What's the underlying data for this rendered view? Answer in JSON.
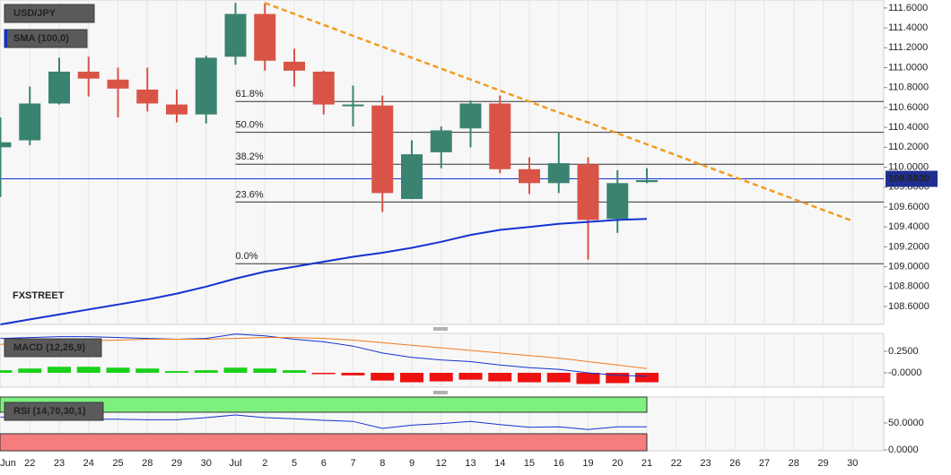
{
  "chart_data": [
    {
      "type": "candlestick",
      "title": "USD/JPY",
      "watermark": "FXSTREET",
      "categories": [
        "Jun",
        "22",
        "23",
        "24",
        "25",
        "28",
        "29",
        "30",
        "Jul",
        "2",
        "5",
        "6",
        "7",
        "8",
        "9",
        "12",
        "13",
        "14",
        "15",
        "16",
        "19",
        "20",
        "21",
        "22",
        "23",
        "26",
        "27",
        "28",
        "29",
        "30"
      ],
      "open": [
        110.2,
        110.27,
        110.64,
        110.96,
        110.88,
        110.78,
        110.63,
        110.53,
        111.11,
        111.54,
        111.06,
        110.96,
        110.62,
        110.62,
        109.68,
        110.15,
        110.39,
        110.64,
        109.98,
        109.84,
        110.03,
        109.48,
        109.85,
        null,
        null,
        null,
        null,
        null,
        null,
        null
      ],
      "high": [
        110.5,
        110.81,
        111.1,
        111.11,
        111.0,
        111.0,
        110.78,
        111.12,
        111.65,
        111.65,
        111.19,
        110.97,
        110.82,
        110.72,
        110.27,
        110.41,
        110.67,
        110.72,
        110.1,
        110.35,
        110.1,
        109.97,
        109.99,
        null,
        null,
        null,
        null,
        null,
        null,
        null
      ],
      "low": [
        109.7,
        110.22,
        110.63,
        110.71,
        110.5,
        110.56,
        110.45,
        110.44,
        111.03,
        110.97,
        110.81,
        110.53,
        110.41,
        109.55,
        109.68,
        109.99,
        110.2,
        109.94,
        109.73,
        109.74,
        109.07,
        109.34,
        109.84,
        null,
        null,
        null,
        null,
        null,
        null,
        null
      ],
      "close": [
        110.25,
        110.64,
        110.96,
        110.89,
        110.79,
        110.64,
        110.53,
        111.1,
        111.54,
        111.07,
        110.97,
        110.63,
        110.63,
        109.74,
        110.13,
        110.37,
        110.64,
        109.98,
        109.84,
        110.04,
        109.47,
        109.84,
        109.87,
        null,
        null,
        null,
        null,
        null,
        null,
        null
      ],
      "up_color": "#3b8371",
      "down_color": "#d95447",
      "ylim": [
        108.42,
        111.68
      ],
      "yticks": [
        {
          "value": 108.6,
          "label": "108.6000"
        },
        {
          "value": 108.8,
          "label": "108.8000"
        },
        {
          "value": 109.0,
          "label": "109.0000"
        },
        {
          "value": 109.2,
          "label": "109.2000"
        },
        {
          "value": 109.4,
          "label": "109.4000"
        },
        {
          "value": 109.6,
          "label": "109.6000"
        },
        {
          "value": 109.8,
          "label": "109.8000"
        },
        {
          "value": 110.0,
          "label": "110.0000"
        },
        {
          "value": 110.2,
          "label": "110.2000"
        },
        {
          "value": 110.4,
          "label": "110.4000"
        },
        {
          "value": 110.6,
          "label": "110.6000"
        },
        {
          "value": 110.8,
          "label": "110.8000"
        },
        {
          "value": 111.0,
          "label": "111.0000"
        },
        {
          "value": 111.2,
          "label": "111.2000"
        },
        {
          "value": 111.4,
          "label": "111.4000"
        },
        {
          "value": 111.6,
          "label": "111.6000"
        }
      ],
      "last_price": {
        "value": 109.883,
        "label": "109.8830"
      },
      "sma": {
        "name": "SMA (100,0)",
        "color": "#1432d0",
        "values": [
          108.42,
          108.47,
          108.52,
          108.57,
          108.62,
          108.67,
          108.73,
          108.8,
          108.88,
          108.95,
          109.0,
          109.05,
          109.1,
          109.14,
          109.19,
          109.25,
          109.32,
          109.37,
          109.4,
          109.43,
          109.45,
          109.47,
          109.48,
          null,
          null,
          null,
          null,
          null,
          null,
          null
        ]
      },
      "trendline": {
        "color": "#f39a1e",
        "values": [
          null,
          null,
          null,
          null,
          null,
          null,
          null,
          null,
          null,
          111.65,
          111.54,
          111.43,
          111.32,
          111.21,
          111.1,
          110.99,
          110.88,
          110.77,
          110.66,
          110.55,
          110.45,
          110.34,
          110.23,
          110.12,
          110.01,
          109.9,
          109.79,
          109.68,
          109.57,
          109.46
        ]
      },
      "fib_levels": [
        {
          "label": "61.8%",
          "value": 110.66
        },
        {
          "label": "50.0%",
          "value": 110.35
        },
        {
          "label": "38.2%",
          "value": 110.03
        },
        {
          "label": "23.6%",
          "value": 109.65
        },
        {
          "label": "0.0%",
          "value": 109.03
        }
      ]
    },
    {
      "type": "macd",
      "title": "MACD (12,26,9)",
      "histogram": [
        0.03,
        0.05,
        0.07,
        0.07,
        0.06,
        0.05,
        0.02,
        0.03,
        0.06,
        0.05,
        0.03,
        -0.005,
        -0.03,
        -0.09,
        -0.11,
        -0.1,
        -0.08,
        -0.1,
        -0.11,
        -0.11,
        -0.13,
        -0.12,
        -0.11,
        null,
        null,
        null,
        null,
        null,
        null,
        null
      ],
      "pos_color": "#19d119",
      "neg_color": "#ee1111",
      "macd": {
        "color": "#1432d0",
        "values": [
          0.4,
          0.41,
          0.42,
          0.42,
          0.41,
          0.4,
          0.39,
          0.4,
          0.45,
          0.43,
          0.39,
          0.36,
          0.31,
          0.23,
          0.18,
          0.15,
          0.13,
          0.09,
          0.06,
          0.04,
          0.0,
          -0.03,
          -0.04,
          null,
          null,
          null,
          null,
          null,
          null,
          null
        ]
      },
      "signal": {
        "color": "#f07a1e",
        "values": [
          0.33,
          0.35,
          0.36,
          0.37,
          0.38,
          0.39,
          0.39,
          0.39,
          0.4,
          0.41,
          0.41,
          0.4,
          0.38,
          0.35,
          0.32,
          0.29,
          0.26,
          0.23,
          0.2,
          0.17,
          0.13,
          0.09,
          0.05,
          null,
          null,
          null,
          null,
          null,
          null,
          null
        ]
      },
      "ylim": [
        -0.167,
        0.458
      ],
      "yticks": [
        {
          "value": 0.25,
          "label": "0.2500"
        },
        {
          "value": 0,
          "label": "-0.0000"
        }
      ]
    },
    {
      "type": "rsi",
      "title": "RSI (14,70,30,1)",
      "values": [
        61,
        60,
        58,
        57,
        57,
        56,
        56,
        60,
        65,
        60,
        58,
        55,
        53,
        40,
        46,
        49,
        53,
        47,
        42,
        43,
        38,
        43,
        43,
        null,
        null,
        null,
        null,
        null,
        null,
        null
      ],
      "color": "#1432d0",
      "overbought": 70,
      "oversold": 30,
      "overbought_color": "#7df07d",
      "oversold_color": "#f67d7d",
      "ylim": [
        -1.7,
        98.3
      ],
      "yticks": [
        {
          "value": 50,
          "label": "50.0000"
        },
        {
          "value": 0,
          "label": "0.0000"
        }
      ]
    }
  ]
}
